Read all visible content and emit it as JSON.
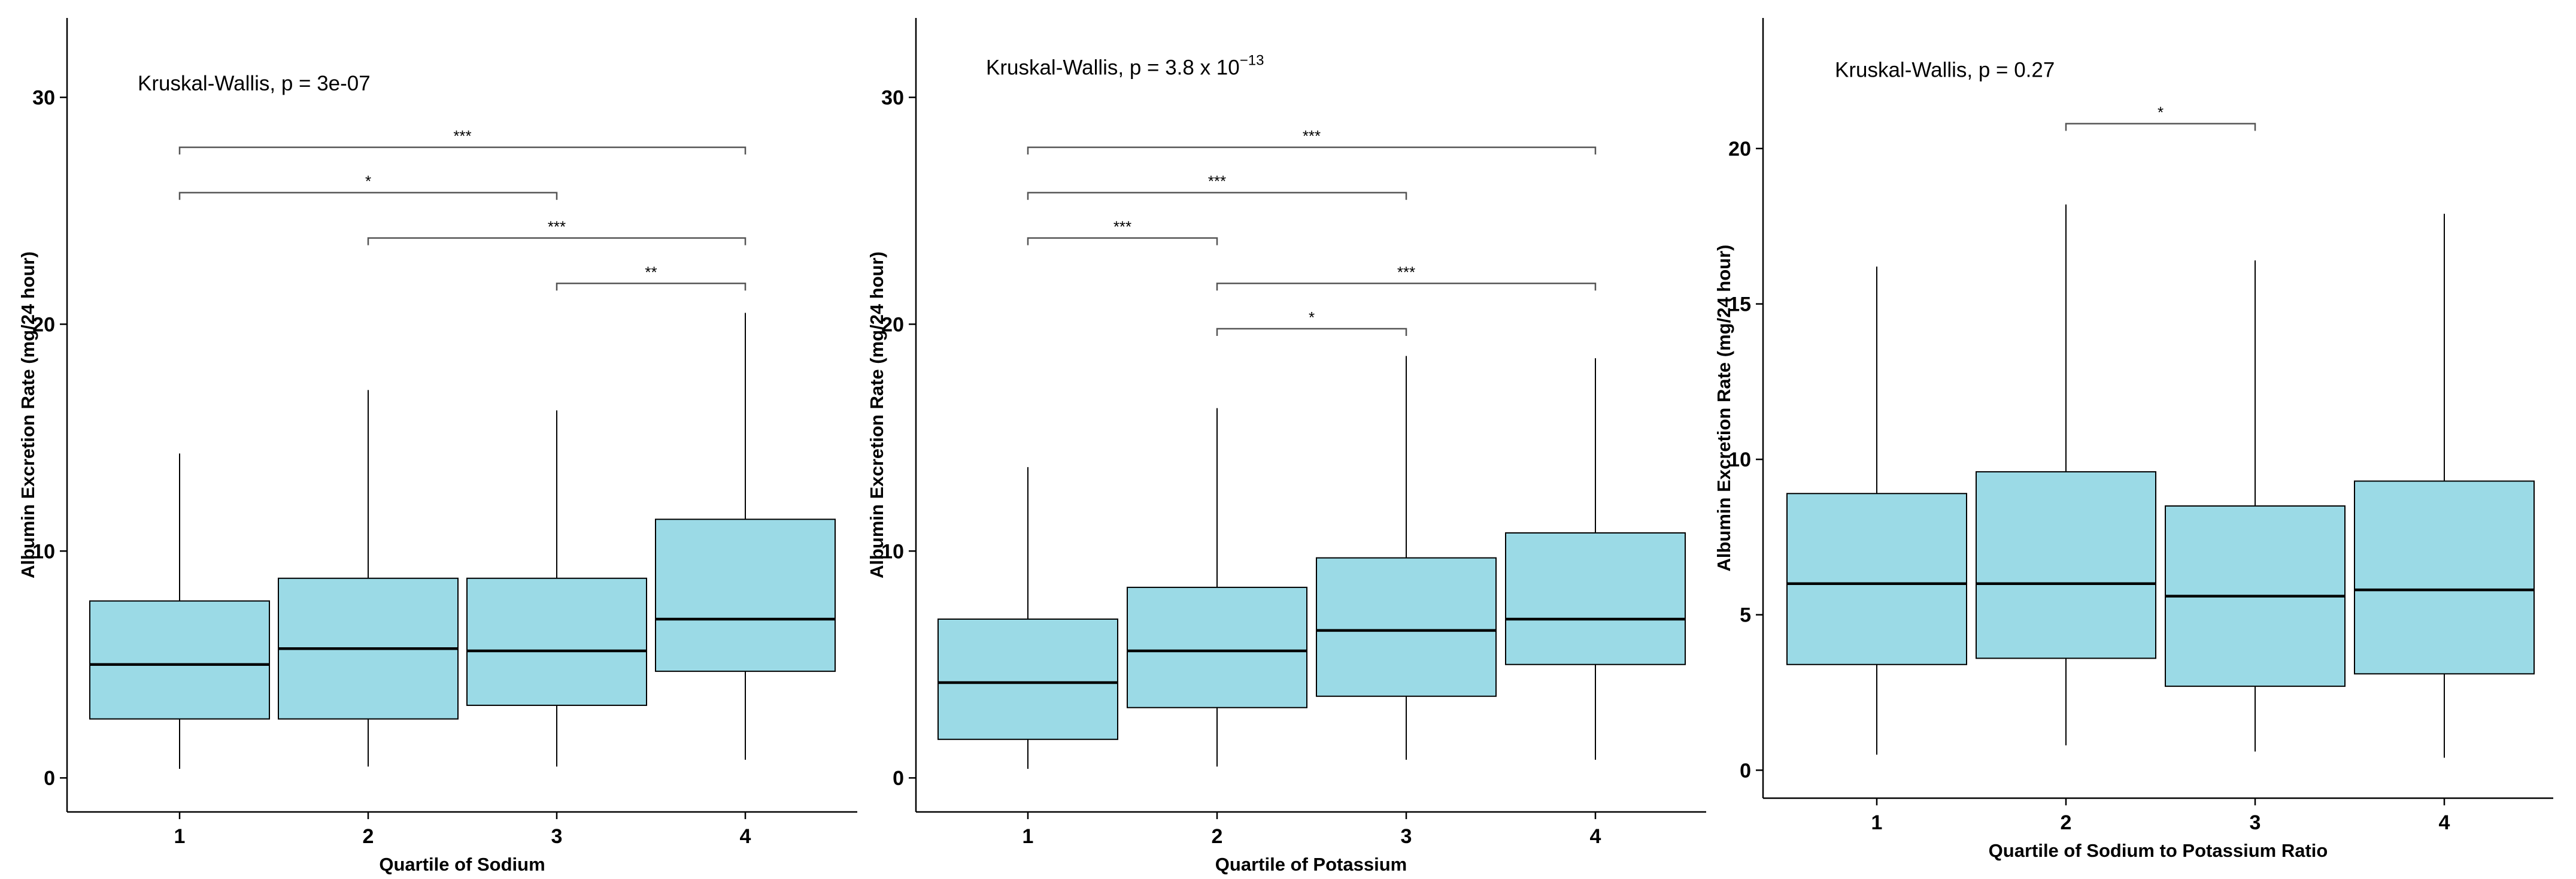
{
  "colors": {
    "box_fill": "#9BDAE6",
    "stroke": "#000000",
    "bracket": "#555555",
    "background": "#ffffff"
  },
  "chart_data": [
    {
      "type": "boxplot",
      "title": "",
      "xlabel": "Quartile of Sodium",
      "ylabel": "Albumin Excretion Rate (mg/24 hour)",
      "categories": [
        "1",
        "2",
        "3",
        "4"
      ],
      "ylim": [
        -1.5,
        33.5
      ],
      "yticks": [
        0,
        10,
        20,
        30
      ],
      "ytick_labels": [
        "0",
        "10",
        "20",
        "30"
      ],
      "boxes": [
        {
          "whisker_low": 0.4,
          "q1": 2.6,
          "median": 5.0,
          "q3": 7.8,
          "whisker_high": 14.3
        },
        {
          "whisker_low": 0.5,
          "q1": 2.6,
          "median": 5.7,
          "q3": 8.8,
          "whisker_high": 17.1
        },
        {
          "whisker_low": 0.5,
          "q1": 3.2,
          "median": 5.6,
          "q3": 8.8,
          "whisker_high": 16.2
        },
        {
          "whisker_low": 0.8,
          "q1": 4.7,
          "median": 7.0,
          "q3": 11.4,
          "whisker_high": 20.5
        }
      ],
      "annotation": {
        "text": "Kruskal-Wallis, p = 3e-07",
        "x": 1.0,
        "y": 30.3
      },
      "comparisons": [
        {
          "from": 1,
          "to": 4,
          "y": 27.8,
          "label": "***"
        },
        {
          "from": 1,
          "to": 3,
          "y": 25.8,
          "label": "*"
        },
        {
          "from": 2,
          "to": 4,
          "y": 23.8,
          "label": "***"
        },
        {
          "from": 3,
          "to": 4,
          "y": 21.8,
          "label": "**"
        }
      ]
    },
    {
      "type": "boxplot",
      "title": "",
      "xlabel": "Quartile of Potassium",
      "ylabel": "Albumin Excretion Rate (mg/24 hour)",
      "categories": [
        "1",
        "2",
        "3",
        "4"
      ],
      "ylim": [
        -1.5,
        33.5
      ],
      "yticks": [
        0,
        10,
        20,
        30
      ],
      "ytick_labels": [
        "0",
        "10",
        "20",
        "30"
      ],
      "boxes": [
        {
          "whisker_low": 0.4,
          "q1": 1.7,
          "median": 4.2,
          "q3": 7.0,
          "whisker_high": 13.7
        },
        {
          "whisker_low": 0.5,
          "q1": 3.1,
          "median": 5.6,
          "q3": 8.4,
          "whisker_high": 16.3
        },
        {
          "whisker_low": 0.8,
          "q1": 3.6,
          "median": 6.5,
          "q3": 9.7,
          "whisker_high": 18.6
        },
        {
          "whisker_low": 0.8,
          "q1": 5.0,
          "median": 7.0,
          "q3": 10.8,
          "whisker_high": 18.5
        }
      ],
      "annotation": {
        "text": "Kruskal-Wallis, p = 3.8 x 10",
        "superscript": "−13",
        "x": 1.0,
        "y": 31.0
      },
      "comparisons": [
        {
          "from": 1,
          "to": 4,
          "y": 27.8,
          "label": "***"
        },
        {
          "from": 1,
          "to": 3,
          "y": 25.8,
          "label": "***"
        },
        {
          "from": 1,
          "to": 2,
          "y": 23.8,
          "label": "***"
        },
        {
          "from": 2,
          "to": 4,
          "y": 21.8,
          "label": "***"
        },
        {
          "from": 2,
          "to": 3,
          "y": 19.8,
          "label": "*"
        }
      ]
    },
    {
      "type": "boxplot",
      "title": "",
      "xlabel": "Quartile of Sodium to Potassium Ratio",
      "ylabel": "Albumin Excretion Rate (mg/24 hour)",
      "categories": [
        "1",
        "2",
        "3",
        "4"
      ],
      "ylim": [
        -0.9,
        24.2
      ],
      "yticks": [
        0,
        5,
        10,
        15,
        20
      ],
      "ytick_labels": [
        "0",
        "5",
        "10",
        "15",
        "20"
      ],
      "boxes": [
        {
          "whisker_low": 0.5,
          "q1": 3.4,
          "median": 6.0,
          "q3": 8.9,
          "whisker_high": 16.2
        },
        {
          "whisker_low": 0.8,
          "q1": 3.6,
          "median": 6.0,
          "q3": 9.6,
          "whisker_high": 18.2
        },
        {
          "whisker_low": 0.6,
          "q1": 2.7,
          "median": 5.6,
          "q3": 8.5,
          "whisker_high": 16.4
        },
        {
          "whisker_low": 0.4,
          "q1": 3.1,
          "median": 5.8,
          "q3": 9.3,
          "whisker_high": 17.9
        }
      ],
      "annotation": {
        "text": "Kruskal-Wallis, p = 0.27",
        "x": 1.0,
        "y": 22.3
      },
      "comparisons": [
        {
          "from": 2,
          "to": 3,
          "y": 20.8,
          "label": "*"
        }
      ]
    }
  ]
}
